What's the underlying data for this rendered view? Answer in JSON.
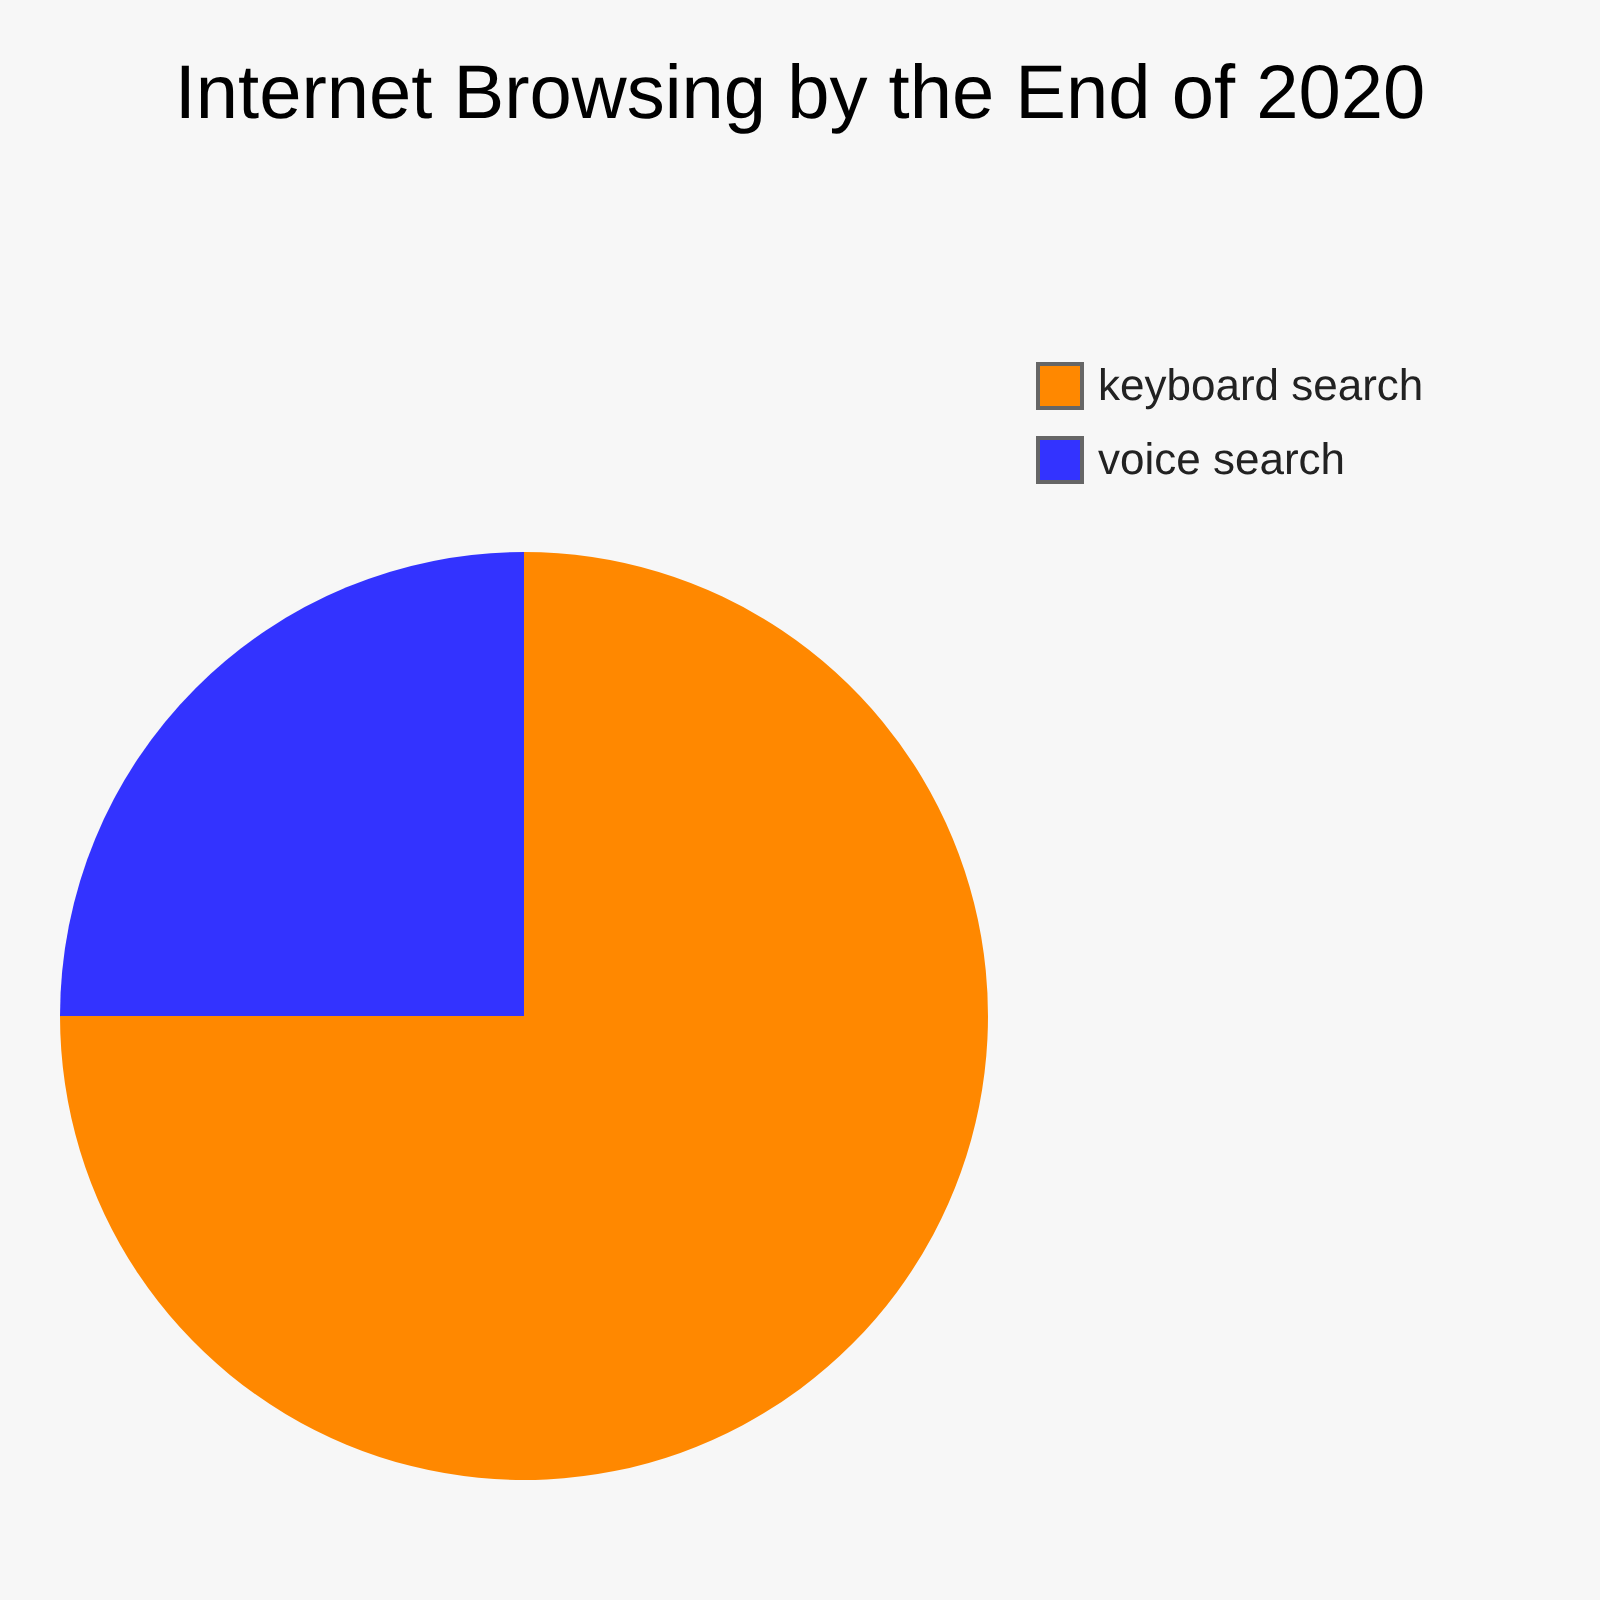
{
  "chart_data": {
    "type": "pie",
    "title": "Internet Browsing by the End of 2020",
    "categories": [
      "keyboard search",
      "voice search"
    ],
    "values": [
      75,
      25
    ],
    "colors": [
      "#ff8800",
      "#3333ff"
    ],
    "legend": "top right"
  }
}
